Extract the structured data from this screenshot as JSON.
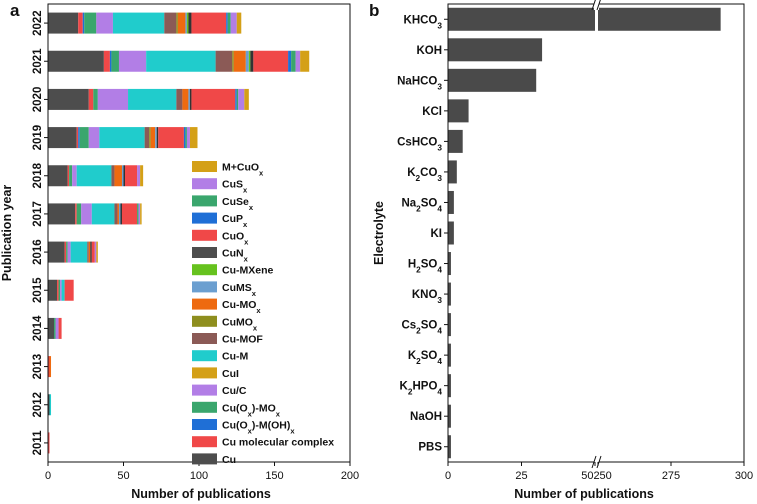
{
  "chart_data": [
    {
      "panel": "a",
      "type": "bar",
      "orientation": "horizontal",
      "stacked": true,
      "xlabel": "Number of publications",
      "ylabel": "Publication year",
      "xlim": [
        0,
        200
      ],
      "xticks": [
        0,
        50,
        100,
        150,
        200
      ],
      "categories": [
        "2022",
        "2021",
        "2020",
        "2019",
        "2018",
        "2017",
        "2016",
        "2015",
        "2014",
        "2013",
        "2012",
        "2011"
      ],
      "legend_position": "lower-right",
      "series": [
        {
          "name": "Cu",
          "color": "#4d4d4d",
          "values": [
            20,
            37,
            27,
            19,
            13,
            18,
            11,
            6,
            4,
            0,
            1,
            0
          ]
        },
        {
          "name": "Cu molecular complex",
          "color": "#f04848",
          "values": [
            3,
            4,
            3,
            1,
            1,
            1,
            1,
            1,
            0,
            1,
            0,
            1
          ]
        },
        {
          "name": "Cu(Ox)-M(OH)x",
          "color": "#1f6fd6",
          "values": [
            1,
            1,
            0,
            1,
            0,
            0,
            0,
            0,
            0,
            0,
            0,
            0
          ]
        },
        {
          "name": "Cu(Ox)-MOx",
          "color": "#3aa66d",
          "values": [
            8,
            5,
            3,
            6,
            2,
            3,
            1,
            1,
            1,
            0,
            0,
            0
          ]
        },
        {
          "name": "Cu/C",
          "color": "#b27ee6",
          "values": [
            11,
            18,
            20,
            7,
            3,
            7,
            2,
            1,
            2,
            0,
            0,
            0
          ]
        },
        {
          "name": "CuI",
          "color": "#d4a017",
          "values": [
            0,
            0,
            0,
            0,
            0,
            0,
            0,
            0,
            0,
            0,
            0,
            0
          ]
        },
        {
          "name": "Cu-M",
          "color": "#20cccc",
          "values": [
            34,
            46,
            32,
            30,
            23,
            15,
            11,
            2,
            0,
            0,
            1,
            0
          ]
        },
        {
          "name": "Cu-MOF",
          "color": "#8b5a56",
          "values": [
            8,
            11,
            4,
            3,
            2,
            2,
            1,
            0,
            0,
            0,
            0,
            0
          ]
        },
        {
          "name": "CuMOx",
          "color": "#8e8e1e",
          "values": [
            1,
            1,
            0,
            1,
            0,
            0,
            0,
            0,
            0,
            0,
            0,
            0
          ]
        },
        {
          "name": "Cu-MOx",
          "color": "#ee6a10",
          "values": [
            5,
            8,
            4,
            3,
            5,
            1,
            1,
            0,
            0,
            1,
            0,
            0
          ]
        },
        {
          "name": "CuMSx",
          "color": "#6b9fd0",
          "values": [
            1,
            2,
            1,
            1,
            1,
            1,
            0,
            0,
            0,
            0,
            0,
            0
          ]
        },
        {
          "name": "Cu-MXene",
          "color": "#66c21e",
          "values": [
            1,
            1,
            0,
            0,
            0,
            0,
            0,
            0,
            0,
            0,
            0,
            0
          ]
        },
        {
          "name": "CuNx",
          "color": "#333333",
          "values": [
            2,
            2,
            1,
            1,
            1,
            1,
            1,
            0,
            0,
            0,
            0,
            0
          ]
        },
        {
          "name": "CuOx",
          "color": "#f04848",
          "values": [
            23,
            23,
            29,
            17,
            8,
            10,
            2,
            6,
            2,
            0,
            0,
            0
          ]
        },
        {
          "name": "CuPx",
          "color": "#1f6fd6",
          "values": [
            1,
            2,
            1,
            1,
            0,
            0,
            0,
            0,
            0,
            0,
            0,
            0
          ]
        },
        {
          "name": "CuSex",
          "color": "#3aa66d",
          "values": [
            2,
            3,
            1,
            1,
            0,
            1,
            0,
            0,
            0,
            0,
            0,
            0
          ]
        },
        {
          "name": "CuSx",
          "color": "#b27ee6",
          "values": [
            4,
            3,
            4,
            2,
            2,
            1,
            1,
            0,
            0,
            0,
            0,
            0
          ]
        },
        {
          "name": "M+CuOx",
          "color": "#d4a017",
          "values": [
            3,
            6,
            3,
            5,
            2,
            1,
            1,
            0,
            0,
            0,
            0,
            0
          ]
        }
      ],
      "legend_entries": [
        {
          "base": "M+CuO",
          "sub": "x",
          "after": "",
          "color": "#d4a017"
        },
        {
          "base": "CuS",
          "sub": "x",
          "after": "",
          "color": "#b27ee6"
        },
        {
          "base": "CuSe",
          "sub": "x",
          "after": "",
          "color": "#3aa66d"
        },
        {
          "base": "CuP",
          "sub": "x",
          "after": "",
          "color": "#1f6fd6"
        },
        {
          "base": "CuO",
          "sub": "x",
          "after": "",
          "color": "#f04848"
        },
        {
          "base": "CuN",
          "sub": "x",
          "after": "",
          "color": "#4d4d4d"
        },
        {
          "base": "Cu-MXene",
          "sub": "",
          "after": "",
          "color": "#66c21e"
        },
        {
          "base": "CuMS",
          "sub": "x",
          "after": "",
          "color": "#6b9fd0"
        },
        {
          "base": "Cu-MO",
          "sub": "x",
          "after": "",
          "color": "#ee6a10"
        },
        {
          "base": "CuMO",
          "sub": "x",
          "after": "",
          "color": "#8e8e1e"
        },
        {
          "base": "Cu-MOF",
          "sub": "",
          "after": "",
          "color": "#8b5a56"
        },
        {
          "base": "Cu-M",
          "sub": "",
          "after": "",
          "color": "#20cccc"
        },
        {
          "base": "CuI",
          "sub": "",
          "after": "",
          "color": "#d4a017"
        },
        {
          "base": "Cu/C",
          "sub": "",
          "after": "",
          "color": "#b27ee6"
        },
        {
          "base": "Cu(O",
          "sub": "x",
          "after": ")-MO",
          "sub2": "x",
          "color": "#3aa66d"
        },
        {
          "base": "Cu(O",
          "sub": "x",
          "after": ")-M(OH)",
          "sub2": "x",
          "color": "#1f6fd6"
        },
        {
          "base": "Cu molecular complex",
          "sub": "",
          "after": "",
          "color": "#f04848"
        },
        {
          "base": "Cu",
          "sub": "",
          "after": "",
          "color": "#4d4d4d"
        }
      ]
    },
    {
      "panel": "b",
      "type": "bar",
      "orientation": "horizontal",
      "xlabel": "Number of publications",
      "ylabel": "Electrolyte",
      "axis_break": {
        "between": [
          50,
          250
        ],
        "tick_label": "50250"
      },
      "xticks": [
        0,
        25,
        50,
        250,
        275,
        300
      ],
      "xtick_labels": [
        "0",
        "25",
        "",
        "",
        "275",
        "300"
      ],
      "bar_color": "#4a4a4a",
      "categories": [
        {
          "parts": [
            [
              "KHCO",
              ""
            ],
            [
              "3",
              "sub"
            ]
          ]
        },
        {
          "parts": [
            [
              "KOH",
              ""
            ]
          ]
        },
        {
          "parts": [
            [
              "NaHCO",
              ""
            ],
            [
              "3",
              "sub"
            ]
          ]
        },
        {
          "parts": [
            [
              "KCl",
              ""
            ]
          ]
        },
        {
          "parts": [
            [
              "CsHCO",
              ""
            ],
            [
              "3",
              "sub"
            ]
          ]
        },
        {
          "parts": [
            [
              "K",
              ""
            ],
            [
              "2",
              "sub"
            ],
            [
              "CO",
              ""
            ],
            [
              "3",
              "sub"
            ]
          ]
        },
        {
          "parts": [
            [
              "Na",
              ""
            ],
            [
              "2",
              "sub"
            ],
            [
              "SO",
              ""
            ],
            [
              "4",
              "sub"
            ]
          ]
        },
        {
          "parts": [
            [
              "KI",
              ""
            ]
          ]
        },
        {
          "parts": [
            [
              "H",
              ""
            ],
            [
              "2",
              "sub"
            ],
            [
              "SO",
              ""
            ],
            [
              "4",
              "sub"
            ]
          ]
        },
        {
          "parts": [
            [
              "KNO",
              ""
            ],
            [
              "3",
              "sub"
            ]
          ]
        },
        {
          "parts": [
            [
              "Cs",
              ""
            ],
            [
              "2",
              "sub"
            ],
            [
              "SO",
              ""
            ],
            [
              "4",
              "sub"
            ]
          ]
        },
        {
          "parts": [
            [
              "K",
              ""
            ],
            [
              "2",
              "sub"
            ],
            [
              "SO",
              ""
            ],
            [
              "4",
              "sub"
            ]
          ]
        },
        {
          "parts": [
            [
              "K",
              ""
            ],
            [
              "2",
              "sub"
            ],
            [
              "HPO",
              ""
            ],
            [
              "4",
              "sub"
            ]
          ]
        },
        {
          "parts": [
            [
              "NaOH",
              ""
            ]
          ]
        },
        {
          "parts": [
            [
              "PBS",
              ""
            ]
          ]
        }
      ],
      "values": [
        292,
        32,
        30,
        7,
        5,
        3,
        2,
        2,
        1,
        1,
        1,
        1,
        1,
        1,
        1
      ]
    }
  ],
  "labels": {
    "panel_a": "a",
    "panel_b": "b"
  }
}
